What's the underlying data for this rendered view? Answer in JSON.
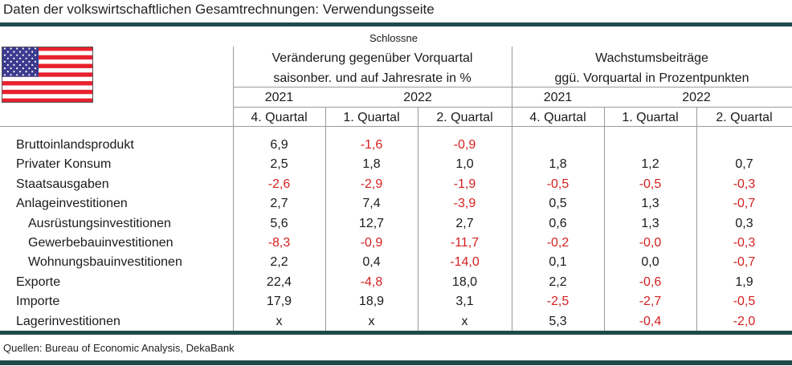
{
  "title": "Daten der volkswirtschaftlichen Gesamtrechnungen: Verwendungsseite",
  "header": {
    "note": "Schlossne",
    "group1_line1": "Veränderung gegenüber Vorquartal",
    "group1_line2": "saisonber. und auf Jahresrate in %",
    "group2_line1": "Wachstumsbeiträge",
    "group2_line2": "ggü. Vorquartal in Prozentpunkten",
    "years": [
      "2021",
      "2022",
      "2021",
      "2022"
    ],
    "quarters": [
      "4. Quartal",
      "1. Quartal",
      "2. Quartal",
      "4. Quartal",
      "1. Quartal",
      "2. Quartal"
    ]
  },
  "flag": "us-flag",
  "rows": [
    {
      "label": "Bruttoinlandsprodukt",
      "indent": false,
      "values": [
        "6,9",
        "-1,6",
        "-0,9",
        "",
        "",
        ""
      ]
    },
    {
      "label": "Privater Konsum",
      "indent": false,
      "values": [
        "2,5",
        "1,8",
        "1,0",
        "1,8",
        "1,2",
        "0,7"
      ]
    },
    {
      "label": "Staatsausgaben",
      "indent": false,
      "values": [
        "-2,6",
        "-2,9",
        "-1,9",
        "-0,5",
        "-0,5",
        "-0,3"
      ]
    },
    {
      "label": "Anlageinvestitionen",
      "indent": false,
      "values": [
        "2,7",
        "7,4",
        "-3,9",
        "0,5",
        "1,3",
        "-0,7"
      ]
    },
    {
      "label": "Ausrüstungsinvestitionen",
      "indent": true,
      "values": [
        "5,6",
        "12,7",
        "2,7",
        "0,6",
        "1,3",
        "0,3"
      ]
    },
    {
      "label": "Gewerbebauinvestitionen",
      "indent": true,
      "values": [
        "-8,3",
        "-0,9",
        "-11,7",
        "-0,2",
        "-0,0",
        "-0,3"
      ]
    },
    {
      "label": "Wohnungsbauinvestitionen",
      "indent": true,
      "values": [
        "2,2",
        "0,4",
        "-14,0",
        "0,1",
        "0,0",
        "-0,7"
      ]
    },
    {
      "label": "Exporte",
      "indent": false,
      "values": [
        "22,4",
        "-4,8",
        "18,0",
        "2,2",
        "-0,6",
        "1,9"
      ]
    },
    {
      "label": "Importe",
      "indent": false,
      "values": [
        "17,9",
        "18,9",
        "3,1",
        "-2,5",
        "-2,7",
        "-0,5"
      ]
    },
    {
      "label": "Lagerinvestitionen",
      "indent": false,
      "values": [
        "x",
        "x",
        "x",
        "5,3",
        "-0,4",
        "-2,0"
      ]
    }
  ],
  "source": "Quellen: Bureau of Economic Analysis, DekaBank",
  "colors": {
    "rule": "#1f4a4b",
    "negative": "#d42020",
    "flag_red": "#e8212e",
    "flag_blue": "#3c3b8f"
  }
}
